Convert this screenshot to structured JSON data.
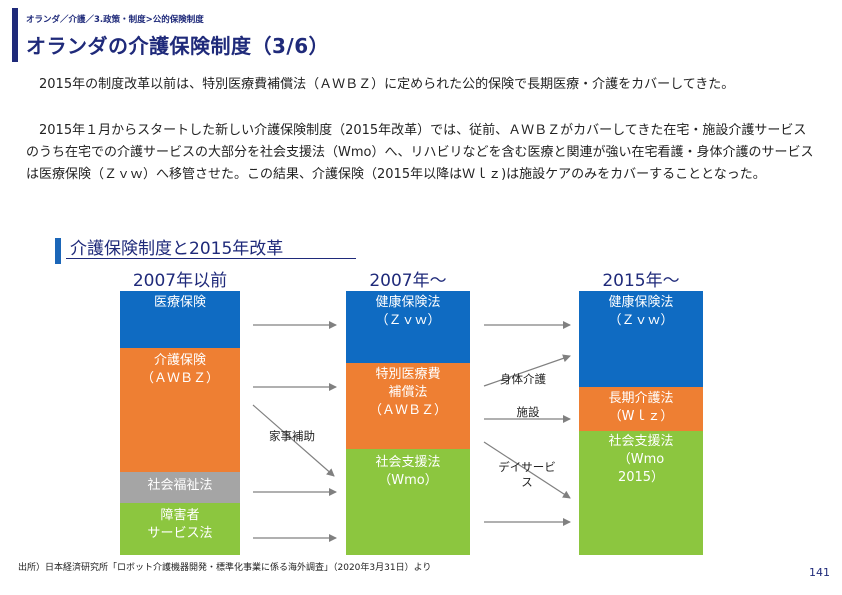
{
  "header": {
    "breadcrumb": "オランダ／介護／3.政策・制度>公的保険制度",
    "title": "オランダの介護保険制度（3/6）"
  },
  "body": {
    "para1": "　2015年の制度改革以前は、特別医療費補償法（ＡＷＢＺ）に定められた公的保険で長期医療・介護をカバーしてきた。",
    "para2": "　2015年１月からスタートした新しい介護保険制度（2015年改革）では、従前、ＡＷＢＺがカバーしてきた在宅・施設介護サービスのうち在宅での介護サービスの大部分を社会支援法（Wmo）へ、リハビリなどを含む医療と関連が強い在宅看護・身体介護のサービスは医療保険（Ｚｖｗ）へ移管させた。この結果、介護保険（2015年以降はＷｌｚ)は施設ケアのみをカバーすることとなった。"
  },
  "section": {
    "title": "介護保険制度と2015年改革"
  },
  "diagram": {
    "columns": {
      "c2007a": "2007年以前",
      "c2007b": "2007年～",
      "c2015": "2015年～"
    },
    "col1": {
      "medical": "医療保険",
      "care": "介護保険\n（ＡＷＢＺ）",
      "welfare": "社会福祉法",
      "disability": "障害者\nサービス法"
    },
    "col2": {
      "health": "健康保険法\n（Ｚｖｗ）",
      "awbz": "特別医療費\n補償法\n（ＡＷＢＺ）",
      "social": "社会支援法\n（Wmo）"
    },
    "col3": {
      "health": "健康保険法\n（Ｚｖｗ）",
      "wlz": "長期介護法\n（Wｌｚ）",
      "social": "社会支援法\n（Wmo\n2015）"
    },
    "labels": {
      "housework": "家事補助",
      "personal_care": "身体介護",
      "facility": "施設",
      "day_service": "デイサービ\nス"
    }
  },
  "footer": {
    "source": "出所）日本経済研究所「ロボット介護機器開発・標準化事業に係る海外調査」（2020年3月31日）より",
    "page": "141"
  }
}
